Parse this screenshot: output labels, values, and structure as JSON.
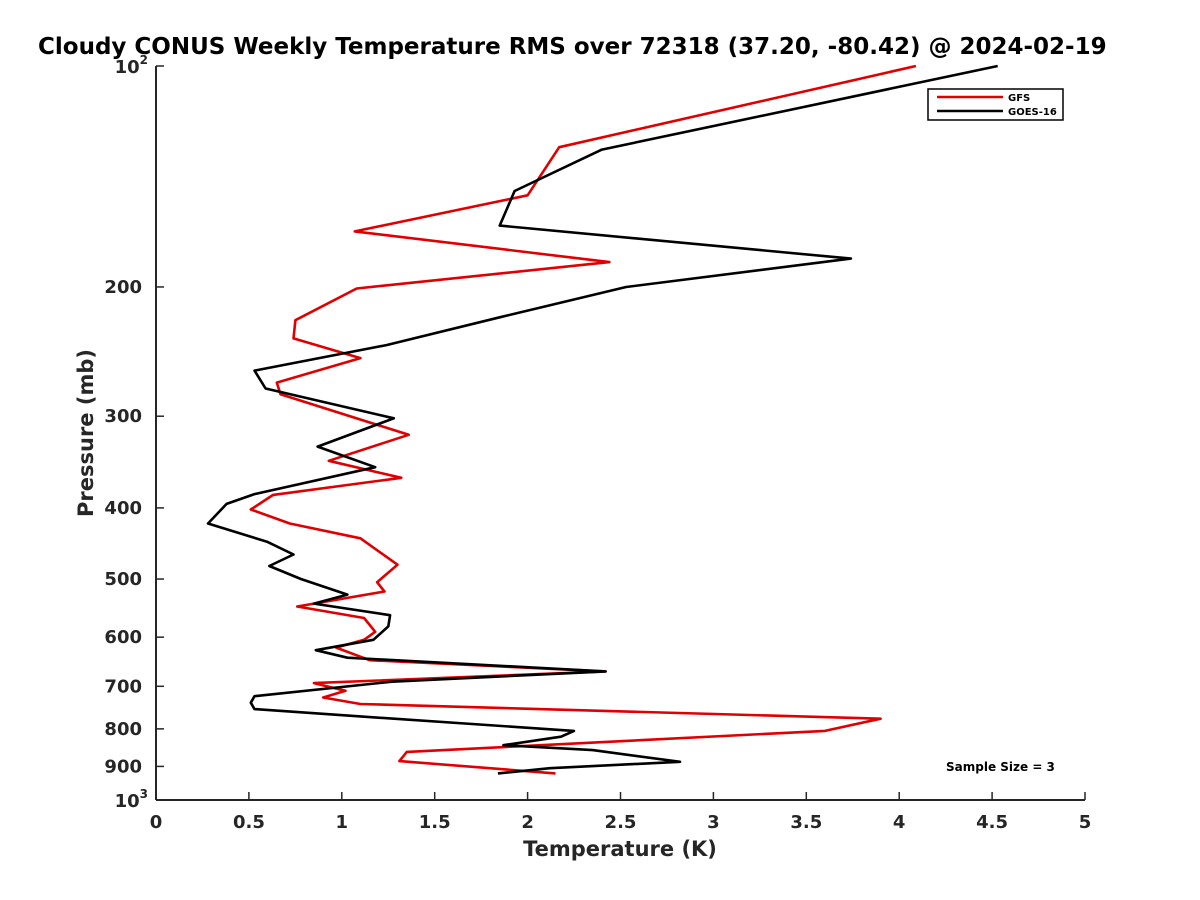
{
  "chart_data": {
    "type": "line",
    "title": "Cloudy CONUS Weekly Temperature RMS over 72318 (37.20, -80.42) @ 2024-02-19",
    "xlabel": "Temperature (K)",
    "ylabel": "Pressure (mb)",
    "xlim": [
      0,
      5
    ],
    "ylim": [
      100,
      1000
    ],
    "y_scale": "log",
    "y_reversed": true,
    "grid": false,
    "legend_position": "top-right",
    "x_ticks": [
      0,
      0.5,
      1,
      1.5,
      2,
      2.5,
      3,
      3.5,
      4,
      4.5,
      5
    ],
    "x_tick_labels": [
      "0",
      "0.5",
      "1",
      "1.5",
      "2",
      "2.5",
      "3",
      "3.5",
      "4",
      "4.5",
      "5"
    ],
    "y_ticks": [
      200,
      300,
      400,
      500,
      600,
      700,
      800,
      900
    ],
    "y_tick_labels": [
      "200",
      "300",
      "400",
      "500",
      "600",
      "700",
      "800",
      "900"
    ],
    "y_decade_ticks": [
      {
        "value": 100,
        "base": "10",
        "exp": "2"
      },
      {
        "value": 1000,
        "base": "10",
        "exp": "3"
      }
    ],
    "annotation": "Sample Size = 3",
    "series": [
      {
        "name": "GFS",
        "color": "#e00000",
        "x": [
          4.09,
          2.17,
          2.0,
          1.07,
          2.44,
          1.08,
          0.75,
          0.74,
          1.1,
          0.65,
          0.67,
          1.36,
          0.93,
          1.32,
          0.63,
          0.51,
          0.72,
          1.1,
          1.3,
          1.25,
          1.19,
          1.23,
          0.76,
          1.12,
          1.18,
          1.12,
          0.97,
          1.15,
          2.42,
          0.85,
          1.02,
          0.9,
          1.1,
          3.9,
          3.6,
          1.35,
          1.31,
          2.15
        ],
        "y": [
          100,
          129,
          150,
          168,
          185,
          201,
          222,
          235,
          250,
          270,
          280,
          318,
          345,
          364,
          384,
          402,
          420,
          440,
          478,
          490,
          505,
          520,
          545,
          565,
          590,
          605,
          620,
          645,
          668,
          693,
          710,
          725,
          740,
          775,
          805,
          860,
          885,
          920
        ]
      },
      {
        "name": "GOES-16",
        "color": "#000000",
        "x": [
          4.53,
          2.4,
          1.93,
          1.85,
          3.74,
          2.53,
          1.85,
          1.24,
          0.53,
          0.59,
          1.28,
          0.87,
          1.18,
          0.53,
          0.38,
          0.28,
          0.6,
          0.74,
          0.61,
          0.78,
          1.03,
          0.85,
          1.26,
          1.25,
          1.17,
          0.86,
          1.03,
          2.42,
          1.27,
          0.53,
          0.51,
          0.53,
          1.12,
          2.25,
          2.18,
          1.87,
          2.35,
          2.82,
          2.12,
          1.84
        ],
        "y": [
          100,
          130,
          148,
          165,
          183,
          200,
          220,
          240,
          260,
          275,
          302,
          330,
          352,
          383,
          395,
          420,
          445,
          463,
          480,
          500,
          525,
          540,
          560,
          580,
          605,
          625,
          640,
          668,
          690,
          722,
          737,
          752,
          770,
          805,
          820,
          842,
          855,
          887,
          905,
          920
        ]
      }
    ]
  }
}
